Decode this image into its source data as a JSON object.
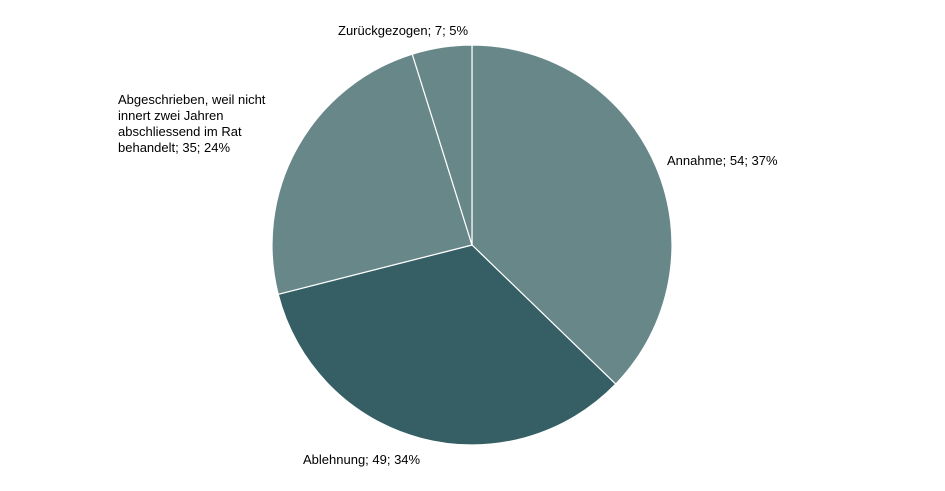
{
  "chart_data": {
    "type": "pie",
    "title": "",
    "start_angle_deg": 0,
    "direction": "clockwise",
    "slice_border_color": "#ffffff",
    "slices": [
      {
        "category": "Annahme",
        "value": 54,
        "percent": 37,
        "label_lines": [
          "Annahme; 54; 37%"
        ],
        "color": "#688789"
      },
      {
        "category": "Ablehnung",
        "value": 49,
        "percent": 34,
        "label_lines": [
          "Ablehnung; 49; 34%"
        ],
        "color": "#355f64"
      },
      {
        "category": "Abgeschrieben, weil nicht innert zwei Jahren abschliessend im Rat behandelt",
        "value": 35,
        "percent": 24,
        "label_lines": [
          "Abgeschrieben, weil nicht",
          "innert zwei  Jahren",
          "abschliessend im Rat",
          "behandelt; 35; 24%"
        ],
        "color": "#688789"
      },
      {
        "category": "Zurückgezogen",
        "value": 7,
        "percent": 5,
        "label_lines": [
          "Zurückgezogen; 7; 5%"
        ],
        "color": "#688789"
      }
    ]
  }
}
